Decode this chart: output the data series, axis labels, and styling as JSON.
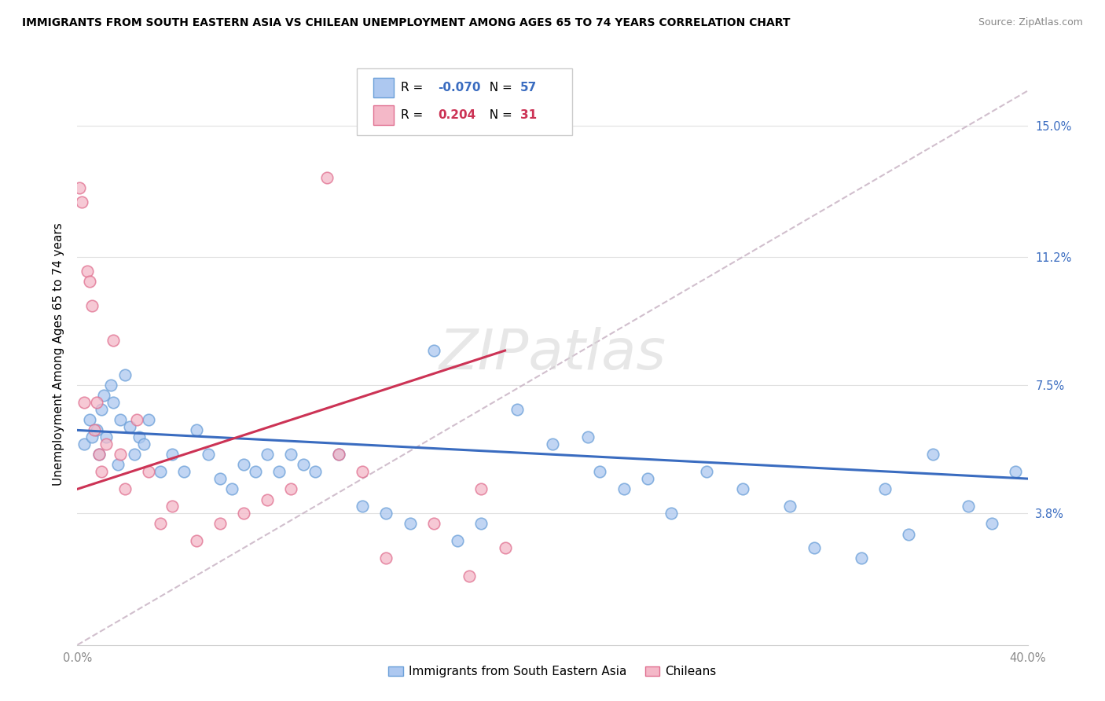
{
  "title": "IMMIGRANTS FROM SOUTH EASTERN ASIA VS CHILEAN UNEMPLOYMENT AMONG AGES 65 TO 74 YEARS CORRELATION CHART",
  "source": "Source: ZipAtlas.com",
  "ylabel": "Unemployment Among Ages 65 to 74 years",
  "right_yticks": [
    3.8,
    7.5,
    11.2,
    15.0
  ],
  "right_ytick_labels": [
    "3.8%",
    "7.5%",
    "11.2%",
    "15.0%"
  ],
  "xmin": 0.0,
  "xmax": 40.0,
  "ymin": 0.0,
  "ymax": 16.8,
  "r1": "-0.070",
  "n1": "57",
  "r2": "0.204",
  "n2": "31",
  "blue_fill_color": "#adc8f0",
  "pink_fill_color": "#f4b8c8",
  "blue_edge_color": "#6a9fd8",
  "pink_edge_color": "#e07090",
  "trend_blue_color": "#3a6cc0",
  "trend_pink_color": "#cc3355",
  "dashed_line_color": "#ccb8c8",
  "legend_box_color": "#adc8f0",
  "legend_pink_color": "#f4b8c8",
  "watermark": "ZIPatlas",
  "legend1_label": "Immigrants from South Eastern Asia",
  "legend2_label": "Chileans",
  "blue_scatter_x": [
    0.3,
    0.5,
    0.6,
    0.8,
    0.9,
    1.0,
    1.1,
    1.2,
    1.4,
    1.5,
    1.7,
    1.8,
    2.0,
    2.2,
    2.4,
    2.6,
    2.8,
    3.0,
    3.5,
    4.0,
    4.5,
    5.0,
    5.5,
    6.0,
    6.5,
    7.0,
    7.5,
    8.0,
    8.5,
    9.0,
    9.5,
    10.0,
    11.0,
    12.0,
    13.0,
    14.0,
    15.0,
    16.0,
    17.0,
    18.5,
    20.0,
    21.5,
    22.0,
    23.0,
    24.0,
    25.0,
    26.5,
    28.0,
    30.0,
    31.0,
    33.0,
    34.0,
    35.0,
    36.0,
    37.5,
    38.5,
    39.5
  ],
  "blue_scatter_y": [
    5.8,
    6.5,
    6.0,
    6.2,
    5.5,
    6.8,
    7.2,
    6.0,
    7.5,
    7.0,
    5.2,
    6.5,
    7.8,
    6.3,
    5.5,
    6.0,
    5.8,
    6.5,
    5.0,
    5.5,
    5.0,
    6.2,
    5.5,
    4.8,
    4.5,
    5.2,
    5.0,
    5.5,
    5.0,
    5.5,
    5.2,
    5.0,
    5.5,
    4.0,
    3.8,
    3.5,
    8.5,
    3.0,
    3.5,
    6.8,
    5.8,
    6.0,
    5.0,
    4.5,
    4.8,
    3.8,
    5.0,
    4.5,
    4.0,
    2.8,
    2.5,
    4.5,
    3.2,
    5.5,
    4.0,
    3.5,
    5.0
  ],
  "pink_scatter_x": [
    0.1,
    0.2,
    0.3,
    0.4,
    0.5,
    0.6,
    0.7,
    0.8,
    0.9,
    1.0,
    1.2,
    1.5,
    1.8,
    2.0,
    2.5,
    3.0,
    3.5,
    4.0,
    5.0,
    6.0,
    7.0,
    8.0,
    9.0,
    10.5,
    11.0,
    12.0,
    13.0,
    15.0,
    16.5,
    17.0,
    18.0
  ],
  "pink_scatter_y": [
    13.2,
    12.8,
    7.0,
    10.8,
    10.5,
    9.8,
    6.2,
    7.0,
    5.5,
    5.0,
    5.8,
    8.8,
    5.5,
    4.5,
    6.5,
    5.0,
    3.5,
    4.0,
    3.0,
    3.5,
    3.8,
    4.2,
    4.5,
    13.5,
    5.5,
    5.0,
    2.5,
    3.5,
    2.0,
    4.5,
    2.8
  ],
  "blue_line_x": [
    0.0,
    40.0
  ],
  "blue_line_y": [
    6.2,
    4.8
  ],
  "pink_line_x": [
    0.0,
    18.0
  ],
  "pink_line_y": [
    4.5,
    8.5
  ],
  "dashed_line_x": [
    0.0,
    40.0
  ],
  "dashed_line_y": [
    0.0,
    16.0
  ]
}
